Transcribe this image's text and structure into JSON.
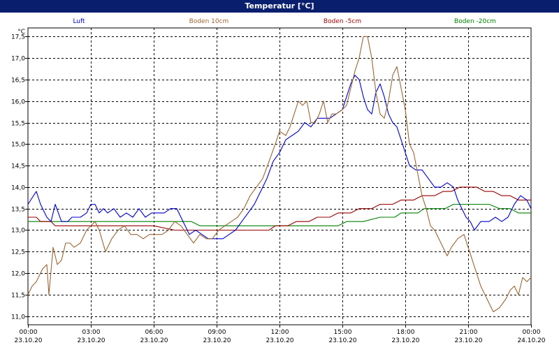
{
  "title": "Temperatur [°C]",
  "chart_data": {
    "type": "line",
    "unit_label": "°C",
    "ylim": [
      10.8,
      17.7
    ],
    "yticks": [
      "11,0",
      "11,5",
      "12,0",
      "12,5",
      "13,0",
      "13,5",
      "14,0",
      "14,5",
      "15,0",
      "15,5",
      "16,0",
      "16,5",
      "17,0",
      "17,5"
    ],
    "ytick_values": [
      11.0,
      11.5,
      12.0,
      12.5,
      13.0,
      13.5,
      14.0,
      14.5,
      15.0,
      15.5,
      16.0,
      16.5,
      17.0,
      17.5
    ],
    "xlim": [
      0,
      24
    ],
    "xticks": [
      {
        "time": "00:00",
        "date": "23.10.20",
        "hour": 0
      },
      {
        "time": "03:00",
        "date": "23.10.20",
        "hour": 3
      },
      {
        "time": "06:00",
        "date": "23.10.20",
        "hour": 6
      },
      {
        "time": "09:00",
        "date": "23.10.20",
        "hour": 9
      },
      {
        "time": "12:00",
        "date": "23.10.20",
        "hour": 12
      },
      {
        "time": "15:00",
        "date": "23.10.20",
        "hour": 15
      },
      {
        "time": "18:00",
        "date": "23.10.20",
        "hour": 18
      },
      {
        "time": "21:00",
        "date": "23.10.20",
        "hour": 21
      },
      {
        "time": "00:00",
        "date": "24.10.20",
        "hour": 24
      }
    ],
    "grid": true,
    "legend_position": "top",
    "series": [
      {
        "name": "Luft",
        "color": "#0000cc",
        "points": [
          [
            0,
            13.6
          ],
          [
            0.4,
            13.9
          ],
          [
            0.6,
            13.6
          ],
          [
            0.9,
            13.3
          ],
          [
            1.1,
            13.2
          ],
          [
            1.3,
            13.6
          ],
          [
            1.6,
            13.2
          ],
          [
            1.9,
            13.2
          ],
          [
            2.1,
            13.3
          ],
          [
            2.5,
            13.3
          ],
          [
            2.8,
            13.4
          ],
          [
            3.0,
            13.6
          ],
          [
            3.2,
            13.6
          ],
          [
            3.4,
            13.4
          ],
          [
            3.6,
            13.5
          ],
          [
            3.8,
            13.4
          ],
          [
            4.1,
            13.5
          ],
          [
            4.4,
            13.3
          ],
          [
            4.7,
            13.4
          ],
          [
            5.0,
            13.3
          ],
          [
            5.3,
            13.5
          ],
          [
            5.6,
            13.3
          ],
          [
            5.9,
            13.4
          ],
          [
            6.2,
            13.4
          ],
          [
            6.5,
            13.4
          ],
          [
            6.8,
            13.5
          ],
          [
            7.1,
            13.5
          ],
          [
            7.4,
            13.2
          ],
          [
            7.7,
            12.9
          ],
          [
            8.0,
            13.0
          ],
          [
            8.3,
            12.9
          ],
          [
            8.6,
            12.8
          ],
          [
            9.0,
            12.8
          ],
          [
            9.3,
            12.8
          ],
          [
            9.6,
            12.9
          ],
          [
            9.9,
            13.0
          ],
          [
            10.2,
            13.2
          ],
          [
            10.5,
            13.4
          ],
          [
            10.8,
            13.6
          ],
          [
            11.1,
            13.9
          ],
          [
            11.4,
            14.2
          ],
          [
            11.7,
            14.6
          ],
          [
            12.0,
            14.8
          ],
          [
            12.3,
            15.1
          ],
          [
            12.6,
            15.2
          ],
          [
            12.9,
            15.3
          ],
          [
            13.2,
            15.5
          ],
          [
            13.5,
            15.4
          ],
          [
            13.8,
            15.6
          ],
          [
            14.1,
            15.6
          ],
          [
            14.4,
            15.6
          ],
          [
            14.7,
            15.7
          ],
          [
            15.0,
            15.8
          ],
          [
            15.2,
            16.1
          ],
          [
            15.4,
            16.4
          ],
          [
            15.6,
            16.6
          ],
          [
            15.8,
            16.5
          ],
          [
            16.0,
            16.1
          ],
          [
            16.2,
            15.8
          ],
          [
            16.4,
            15.7
          ],
          [
            16.6,
            16.2
          ],
          [
            16.8,
            16.4
          ],
          [
            17.0,
            16.1
          ],
          [
            17.2,
            15.7
          ],
          [
            17.4,
            15.5
          ],
          [
            17.6,
            15.4
          ],
          [
            17.8,
            15.1
          ],
          [
            18.0,
            14.8
          ],
          [
            18.2,
            14.5
          ],
          [
            18.5,
            14.4
          ],
          [
            18.8,
            14.4
          ],
          [
            19.1,
            14.2
          ],
          [
            19.4,
            14.0
          ],
          [
            19.7,
            14.0
          ],
          [
            20.0,
            14.1
          ],
          [
            20.3,
            14.0
          ],
          [
            20.5,
            13.7
          ],
          [
            20.7,
            13.5
          ],
          [
            20.9,
            13.3
          ],
          [
            21.1,
            13.2
          ],
          [
            21.3,
            13.0
          ],
          [
            21.6,
            13.2
          ],
          [
            22.0,
            13.2
          ],
          [
            22.3,
            13.3
          ],
          [
            22.6,
            13.2
          ],
          [
            22.9,
            13.3
          ],
          [
            23.2,
            13.6
          ],
          [
            23.5,
            13.8
          ],
          [
            23.8,
            13.7
          ],
          [
            24.0,
            13.5
          ]
        ]
      },
      {
        "name": "Boden 10cm",
        "color": "#996633",
        "points": [
          [
            0,
            11.5
          ],
          [
            0.2,
            11.7
          ],
          [
            0.4,
            11.8
          ],
          [
            0.7,
            12.1
          ],
          [
            0.9,
            12.2
          ],
          [
            1.0,
            11.5
          ],
          [
            1.2,
            12.6
          ],
          [
            1.4,
            12.2
          ],
          [
            1.6,
            12.3
          ],
          [
            1.8,
            12.7
          ],
          [
            2.0,
            12.7
          ],
          [
            2.2,
            12.6
          ],
          [
            2.5,
            12.7
          ],
          [
            2.8,
            13.0
          ],
          [
            3.0,
            13.1
          ],
          [
            3.2,
            13.2
          ],
          [
            3.4,
            13.0
          ],
          [
            3.7,
            12.5
          ],
          [
            4.0,
            12.8
          ],
          [
            4.3,
            13.0
          ],
          [
            4.6,
            13.1
          ],
          [
            4.9,
            12.9
          ],
          [
            5.2,
            12.9
          ],
          [
            5.5,
            12.8
          ],
          [
            5.8,
            12.9
          ],
          [
            6.1,
            12.9
          ],
          [
            6.4,
            12.9
          ],
          [
            6.7,
            13.0
          ],
          [
            7.0,
            13.2
          ],
          [
            7.3,
            13.1
          ],
          [
            7.6,
            12.9
          ],
          [
            7.9,
            12.7
          ],
          [
            8.2,
            12.9
          ],
          [
            8.5,
            12.8
          ],
          [
            8.8,
            12.8
          ],
          [
            9.1,
            13.0
          ],
          [
            9.4,
            13.1
          ],
          [
            9.7,
            13.2
          ],
          [
            10.0,
            13.3
          ],
          [
            10.3,
            13.5
          ],
          [
            10.6,
            13.8
          ],
          [
            10.9,
            14.0
          ],
          [
            11.2,
            14.2
          ],
          [
            11.5,
            14.6
          ],
          [
            11.8,
            15.0
          ],
          [
            12.0,
            15.3
          ],
          [
            12.3,
            15.2
          ],
          [
            12.5,
            15.4
          ],
          [
            12.7,
            15.7
          ],
          [
            12.9,
            16.0
          ],
          [
            13.1,
            15.9
          ],
          [
            13.3,
            16.0
          ],
          [
            13.5,
            15.5
          ],
          [
            13.7,
            15.5
          ],
          [
            13.9,
            15.7
          ],
          [
            14.1,
            16.0
          ],
          [
            14.3,
            15.5
          ],
          [
            14.5,
            15.7
          ],
          [
            14.7,
            15.7
          ],
          [
            15.0,
            15.8
          ],
          [
            15.2,
            15.9
          ],
          [
            15.4,
            16.3
          ],
          [
            15.6,
            16.7
          ],
          [
            15.8,
            17.0
          ],
          [
            16.0,
            17.5
          ],
          [
            16.2,
            17.5
          ],
          [
            16.4,
            17.0
          ],
          [
            16.6,
            16.2
          ],
          [
            16.8,
            15.7
          ],
          [
            17.0,
            15.6
          ],
          [
            17.2,
            16.0
          ],
          [
            17.4,
            16.6
          ],
          [
            17.6,
            16.8
          ],
          [
            17.8,
            16.3
          ],
          [
            18.0,
            15.8
          ],
          [
            18.2,
            15.0
          ],
          [
            18.4,
            14.8
          ],
          [
            18.6,
            14.3
          ],
          [
            18.8,
            13.8
          ],
          [
            19.0,
            13.5
          ],
          [
            19.2,
            13.1
          ],
          [
            19.4,
            13.0
          ],
          [
            19.6,
            12.8
          ],
          [
            19.8,
            12.6
          ],
          [
            20.0,
            12.4
          ],
          [
            20.2,
            12.6
          ],
          [
            20.5,
            12.8
          ],
          [
            20.8,
            12.9
          ],
          [
            21.0,
            12.6
          ],
          [
            21.2,
            12.3
          ],
          [
            21.4,
            12.0
          ],
          [
            21.6,
            11.7
          ],
          [
            21.8,
            11.5
          ],
          [
            22.0,
            11.3
          ],
          [
            22.2,
            11.1
          ],
          [
            22.5,
            11.2
          ],
          [
            22.8,
            11.4
          ],
          [
            23.0,
            11.6
          ],
          [
            23.2,
            11.7
          ],
          [
            23.4,
            11.5
          ],
          [
            23.6,
            11.9
          ],
          [
            23.8,
            11.8
          ],
          [
            24.0,
            11.9
          ]
        ]
      },
      {
        "name": "Boden -5cm",
        "color": "#990000",
        "points": [
          [
            0,
            13.3
          ],
          [
            0.4,
            13.3
          ],
          [
            0.6,
            13.2
          ],
          [
            1.1,
            13.2
          ],
          [
            1.3,
            13.1
          ],
          [
            3.0,
            13.1
          ],
          [
            4.0,
            13.1
          ],
          [
            5.0,
            13.1
          ],
          [
            6.0,
            13.1
          ],
          [
            7.0,
            13.0
          ],
          [
            8.0,
            13.0
          ],
          [
            9.0,
            13.0
          ],
          [
            10.0,
            13.0
          ],
          [
            11.0,
            13.0
          ],
          [
            11.5,
            13.0
          ],
          [
            11.8,
            13.1
          ],
          [
            12.4,
            13.1
          ],
          [
            12.8,
            13.2
          ],
          [
            13.4,
            13.2
          ],
          [
            13.8,
            13.3
          ],
          [
            14.4,
            13.3
          ],
          [
            14.8,
            13.4
          ],
          [
            15.4,
            13.4
          ],
          [
            15.8,
            13.5
          ],
          [
            16.4,
            13.5
          ],
          [
            16.8,
            13.6
          ],
          [
            17.4,
            13.6
          ],
          [
            17.8,
            13.7
          ],
          [
            18.4,
            13.7
          ],
          [
            18.8,
            13.8
          ],
          [
            19.4,
            13.8
          ],
          [
            19.8,
            13.9
          ],
          [
            20.2,
            13.9
          ],
          [
            20.6,
            14.0
          ],
          [
            21.0,
            14.0
          ],
          [
            21.4,
            14.0
          ],
          [
            21.8,
            13.9
          ],
          [
            22.2,
            13.9
          ],
          [
            22.6,
            13.8
          ],
          [
            23.0,
            13.8
          ],
          [
            23.4,
            13.7
          ],
          [
            24.0,
            13.7
          ]
        ]
      },
      {
        "name": "Boden -20cm",
        "color": "#008000",
        "points": [
          [
            0,
            13.2
          ],
          [
            1.0,
            13.2
          ],
          [
            2.0,
            13.2
          ],
          [
            3.0,
            13.2
          ],
          [
            4.0,
            13.2
          ],
          [
            5.0,
            13.2
          ],
          [
            6.0,
            13.2
          ],
          [
            7.0,
            13.2
          ],
          [
            7.8,
            13.2
          ],
          [
            8.2,
            13.1
          ],
          [
            9.5,
            13.1
          ],
          [
            11.0,
            13.1
          ],
          [
            12.0,
            13.1
          ],
          [
            13.0,
            13.1
          ],
          [
            14.0,
            13.1
          ],
          [
            14.8,
            13.1
          ],
          [
            15.2,
            13.2
          ],
          [
            16.0,
            13.2
          ],
          [
            16.8,
            13.3
          ],
          [
            17.5,
            13.3
          ],
          [
            17.8,
            13.4
          ],
          [
            18.6,
            13.4
          ],
          [
            18.9,
            13.5
          ],
          [
            19.6,
            13.5
          ],
          [
            19.9,
            13.5
          ],
          [
            20.3,
            13.6
          ],
          [
            21.0,
            13.6
          ],
          [
            22.0,
            13.6
          ],
          [
            22.5,
            13.5
          ],
          [
            23.0,
            13.5
          ],
          [
            23.4,
            13.4
          ],
          [
            24.0,
            13.4
          ]
        ]
      }
    ]
  }
}
